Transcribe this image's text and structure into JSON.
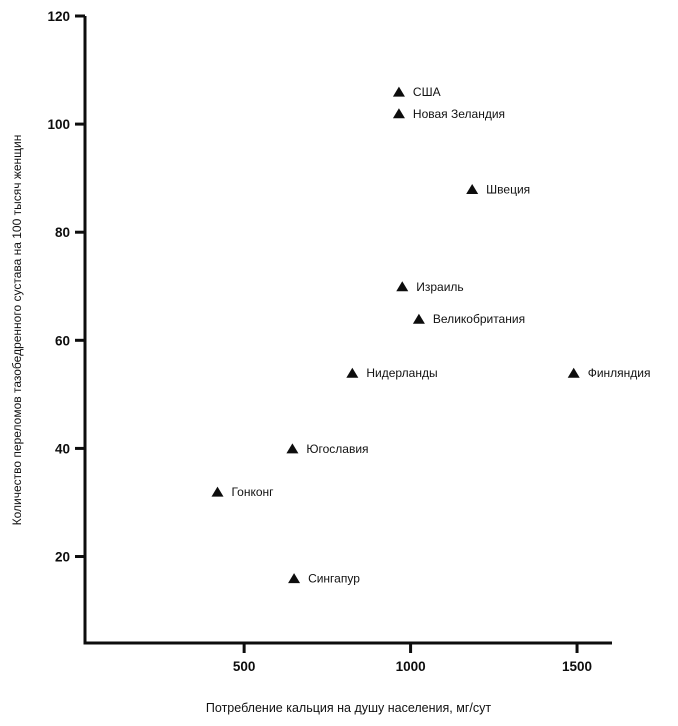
{
  "colors": {
    "ink": "#0d0d0d",
    "text": "#111111",
    "background": "#ffffff"
  },
  "chart_data": {
    "type": "scatter",
    "title": "",
    "xlabel": "Потребление кальция на душу населения, мг/сут",
    "ylabel": "Количество переломов тазобедренного сустава на 100 тысяч женщин",
    "xlim": [
      22,
      1605
    ],
    "ylim": [
      4,
      120
    ],
    "x_ticks": [
      500,
      1000,
      1500
    ],
    "y_ticks": [
      20,
      40,
      60,
      80,
      100,
      120
    ],
    "grid": false,
    "legend": "none",
    "marker": {
      "shape": "triangle-up",
      "color": "#0d0d0d",
      "width": 12,
      "height": 10
    },
    "points": [
      {
        "label": "США",
        "x": 965,
        "y": 106
      },
      {
        "label": "Новая Зеландия",
        "x": 965,
        "y": 102
      },
      {
        "label": "Швеция",
        "x": 1185,
        "y": 88
      },
      {
        "label": "Израиль",
        "x": 975,
        "y": 70
      },
      {
        "label": "Великобритания",
        "x": 1025,
        "y": 64
      },
      {
        "label": "Нидерланды",
        "x": 825,
        "y": 54
      },
      {
        "label": "Финляндия",
        "x": 1490,
        "y": 54
      },
      {
        "label": "Югославия",
        "x": 645,
        "y": 40
      },
      {
        "label": "Гонконг",
        "x": 420,
        "y": 32
      },
      {
        "label": "Сингапур",
        "x": 650,
        "y": 16
      }
    ]
  }
}
